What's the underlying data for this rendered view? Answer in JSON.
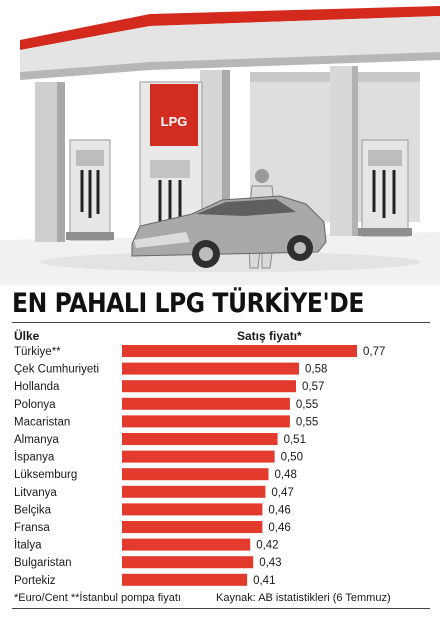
{
  "header": {
    "title": "EN PAHALI LPG TÜRKİYE'DE",
    "sign_text": "LPG"
  },
  "columns": {
    "country": "Ülke",
    "price": "Satış fiyatı*"
  },
  "footer": {
    "notes": "*Euro/Cent  **İstanbul pompa fiyatı",
    "source": "Kaynak: AB istatistikleri (6 Temmuz)"
  },
  "colors": {
    "bar": "#e23a2c",
    "canopy_red": "#d42a1e",
    "sign_red": "#d32d22"
  },
  "chart_data": {
    "type": "bar",
    "orientation": "horizontal",
    "categories": [
      "Türkiye**",
      "Çek Cumhuriyeti",
      "Hollanda",
      "Polonya",
      "Macaristan",
      "Almanya",
      "İspanya",
      "Lüksemburg",
      "Litvanya",
      "Belçika",
      "Fransa",
      "İtalya",
      "Bulgaristan",
      "Portekiz"
    ],
    "values": [
      0.77,
      0.58,
      0.57,
      0.55,
      0.55,
      0.51,
      0.5,
      0.48,
      0.47,
      0.46,
      0.46,
      0.42,
      0.43,
      0.41
    ],
    "labels": [
      "0,77",
      "0,58",
      "0,57",
      "0,55",
      "0,55",
      "0,51",
      "0,50",
      "0,48",
      "0,47",
      "0,46",
      "0,46",
      "0,42",
      "0,43",
      "0,41"
    ],
    "xlabel": "Satış fiyatı*",
    "ylabel": "Ülke",
    "unit": "Euro/Cent"
  }
}
